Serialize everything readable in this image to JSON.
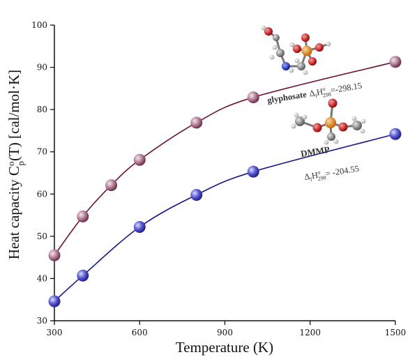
{
  "chart_data": {
    "type": "line",
    "xlabel": "Temperature (K)",
    "ylabel_parts": {
      "pre": "Heat capacity C",
      "sup": "o",
      "sub": "p",
      "post": "(T) [cal/mol·K]"
    },
    "xlim": [
      300,
      1500
    ],
    "ylim": [
      30,
      100
    ],
    "xticks": [
      300,
      600,
      900,
      1200,
      1500
    ],
    "yticks": [
      30,
      40,
      50,
      60,
      70,
      80,
      90,
      100
    ],
    "grid": false,
    "series": [
      {
        "name": "glyphosate",
        "color": "#6b1030",
        "marker_color": "#a86b87",
        "x": [
          300,
          400,
          500,
          600,
          800,
          1000,
          1500
        ],
        "y": [
          45.5,
          54.7,
          62.1,
          68.1,
          76.9,
          82.9,
          91.3
        ]
      },
      {
        "name": "DMMP",
        "color": "#15158a",
        "marker_color": "#4848b8",
        "x": [
          300,
          400,
          600,
          800,
          1000,
          1500
        ],
        "y": [
          34.6,
          40.7,
          52.2,
          59.8,
          65.3,
          74.2
        ]
      }
    ],
    "annotations": [
      {
        "name": "glyphosate",
        "enthalpy": "=-298.15"
      },
      {
        "name": "DMMP",
        "enthalpy": "= -204.55"
      }
    ],
    "enthalpy_symbol": {
      "delta": "Δ",
      "f": "f",
      "H": "H",
      "sup": "o",
      "sub": "298"
    },
    "atom_colors": {
      "carbon": "#8c8c8c",
      "oxygen": "#d01010",
      "phosphorus": "#f08a10",
      "nitrogen": "#1a2fd0",
      "hydrogen": "#e8e8e8"
    }
  }
}
